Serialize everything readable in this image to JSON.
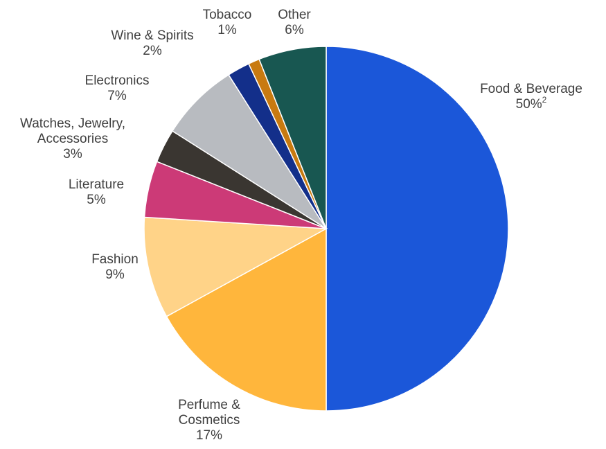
{
  "chart_data": {
    "type": "pie",
    "start_angle_deg": 0,
    "direction": "clockwise",
    "slices": [
      {
        "label": "Food & Beverage",
        "lines": [
          "Food & Beverage"
        ],
        "value": 50,
        "value_label": "50%",
        "footnote": "2",
        "color": "#1b57d9"
      },
      {
        "label": "Perfume & Cosmetics",
        "lines": [
          "Perfume &",
          "Cosmetics"
        ],
        "value": 17,
        "value_label": "17%",
        "color": "#ffb63c"
      },
      {
        "label": "Fashion",
        "lines": [
          "Fashion"
        ],
        "value": 9,
        "value_label": "9%",
        "color": "#ffd388"
      },
      {
        "label": "Literature",
        "lines": [
          "Literature"
        ],
        "value": 5,
        "value_label": "5%",
        "color": "#cc3a77"
      },
      {
        "label": "Watches, Jewelry, Accessories",
        "lines": [
          "Watches, Jewelry,",
          "Accessories"
        ],
        "value": 3,
        "value_label": "3%",
        "color": "#3a3631"
      },
      {
        "label": "Electronics",
        "lines": [
          "Electronics"
        ],
        "value": 7,
        "value_label": "7%",
        "color": "#b8bbc0"
      },
      {
        "label": "Wine & Spirits",
        "lines": [
          "Wine & Spirits"
        ],
        "value": 2,
        "value_label": "2%",
        "color": "#132f8a"
      },
      {
        "label": "Tobacco",
        "lines": [
          "Tobacco"
        ],
        "value": 1,
        "value_label": "1%",
        "color": "#c87a10"
      },
      {
        "label": "Other",
        "lines": [
          "Other"
        ],
        "value": 6,
        "value_label": "6%",
        "color": "#185751"
      }
    ]
  }
}
